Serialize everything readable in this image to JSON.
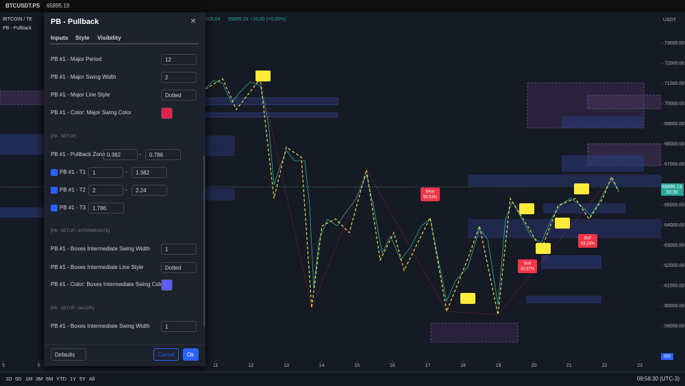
{
  "header": {
    "symbol": "BTCUSDT.PS",
    "price": "65895.19"
  },
  "chart": {
    "symbol_title": "BITCOIN / TE",
    "indicator": "PB - Pullback",
    "ohlc": "609.04",
    "last": "65895.19",
    "change": "+33.60 (+0.05%)",
    "currency": "USDT",
    "last_price_label": "65895.19",
    "countdown": "03:30",
    "volume_label": "555"
  },
  "price_axis": {
    "ylim": [
      57100,
      74520
    ],
    "ticks": [
      {
        "value": 73000,
        "label": "73000.00"
      },
      {
        "value": 72000,
        "label": "72000.00"
      },
      {
        "value": 71000,
        "label": "71000.00"
      },
      {
        "value": 70000,
        "label": "70000.00"
      },
      {
        "value": 69000,
        "label": "69000.00"
      },
      {
        "value": 68000,
        "label": "68000.00"
      },
      {
        "value": 67000,
        "label": "67000.00"
      },
      {
        "value": 65000,
        "label": "65000.00"
      },
      {
        "value": 64000,
        "label": "64000.00"
      },
      {
        "value": 63000,
        "label": "63000.00"
      },
      {
        "value": 62000,
        "label": "62000.00"
      },
      {
        "value": 61000,
        "label": "61000.00"
      },
      {
        "value": 60000,
        "label": "60000.00"
      },
      {
        "value": 59000,
        "label": "59000.00"
      }
    ]
  },
  "time_axis": {
    "xlim": [
      4.9,
      23.6
    ],
    "ticks": [
      5,
      6,
      11,
      12,
      13,
      14,
      15,
      16,
      17,
      18,
      19,
      20,
      21,
      22,
      23
    ]
  },
  "signals": [
    {
      "label": "Bear",
      "value": "55.53%"
    },
    {
      "label": "Bull",
      "value": "42.87%"
    },
    {
      "label": "Bull",
      "value": "53.24%"
    }
  ],
  "dialog": {
    "title": "PB - Pullback",
    "tabs": [
      "Inputs",
      "Style",
      "Visibility"
    ],
    "range_separator": "-",
    "rows": [
      {
        "label": "PB #1 - Major Period",
        "input": 12
      },
      {
        "label": "PB #1 - Major Swing Width",
        "input": 2
      },
      {
        "label": "PB #1 - Major Line Style",
        "select": "Dotted"
      },
      {
        "label": "PB #1 - Color: Major Swing Color",
        "color": "#e0234a"
      },
      {
        "section": "[PB - SETUP]"
      },
      {
        "label": "PB #1 - Pullback Zone",
        "range": [
          0.382,
          0.786
        ]
      },
      {
        "label": "PB #1 - T1",
        "checked": true,
        "range": [
          1,
          1.382
        ]
      },
      {
        "label": "PB #1 - T2",
        "checked": true,
        "range": [
          2,
          2.24
        ]
      },
      {
        "label": "PB #1 - T3",
        "checked": true,
        "input": 1.786
      },
      {
        "section": "[PB - SETUP - INTERMEDIATE]"
      },
      {
        "label": "PB #1 - Boxes Intermediate Swing Width",
        "input": 1
      },
      {
        "label": "PB #1 - Boxes Intermediate Line Style",
        "select": "Dotted"
      },
      {
        "label": "PB #1 - Color: Boxes Intermediate Swing Color",
        "color": "#5b5ef0"
      },
      {
        "section": "[PB - SETUP - MAJOR]"
      },
      {
        "label": "PB #1 - Boxes Intermediate Swing Width",
        "input": 1
      }
    ],
    "buttons": {
      "defaults": "Defaults",
      "cancel": "Cancel",
      "ok": "Ok"
    }
  },
  "toolbar": {
    "ranges": [
      "1D",
      "5D",
      "1M",
      "3M",
      "6M",
      "YTD",
      "1Y",
      "5Y",
      "All"
    ],
    "clock": "09:56:30 (UTC-3)"
  }
}
